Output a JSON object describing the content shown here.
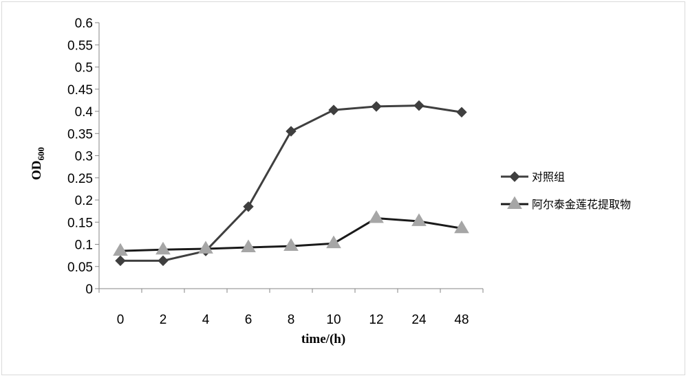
{
  "chart_data": {
    "type": "line",
    "categories": [
      "0",
      "2",
      "4",
      "6",
      "8",
      "10",
      "12",
      "24",
      "48"
    ],
    "xlabel": "time/(h)",
    "ylabel": {
      "main": "OD",
      "sub": "600"
    },
    "ylim": [
      0,
      0.6
    ],
    "yticks": [
      "0",
      "0.05",
      "0.1",
      "0.15",
      "0.2",
      "0.25",
      "0.3",
      "0.35",
      "0.4",
      "0.45",
      "0.5",
      "0.55",
      "0.6"
    ],
    "grid": false,
    "legend_position": "right",
    "series": [
      {
        "name": "对照组",
        "marker": "diamond",
        "color": "#3f3f3f",
        "values": [
          0.063,
          0.063,
          0.085,
          0.185,
          0.355,
          0.403,
          0.411,
          0.413,
          0.398
        ]
      },
      {
        "name": "阿尔泰金莲花提取物",
        "marker": "triangle",
        "color": "#a6a6a6",
        "line_color": "#1a1a1a",
        "values": [
          0.085,
          0.088,
          0.09,
          0.093,
          0.096,
          0.102,
          0.159,
          0.152,
          0.136
        ]
      }
    ]
  }
}
